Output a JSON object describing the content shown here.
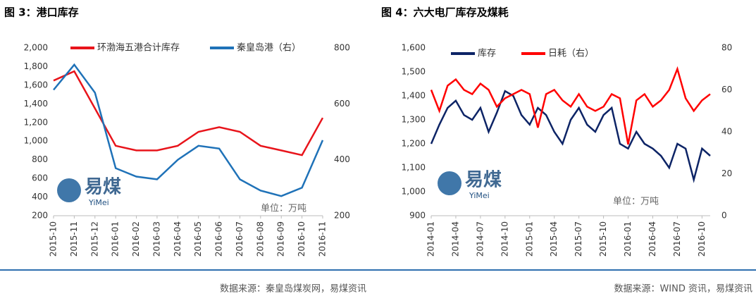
{
  "chart_data": [
    {
      "type": "line",
      "title": "图 3：港口库存",
      "source": "数据来源：秦皇岛煤炭网，易煤资讯",
      "annotation": "单位：万吨",
      "watermark": {
        "text": "易煤",
        "sub": "YiMei"
      },
      "x": [
        "2015-10",
        "2015-11",
        "2015-12",
        "2016-01",
        "2016-02",
        "2016-03",
        "2016-04",
        "2016-05",
        "2016-06",
        "2016-07",
        "2016-08",
        "2016-09",
        "2016-10",
        "2016-11"
      ],
      "ylim": [
        200,
        2000
      ],
      "yticks": [
        {
          "value": 200,
          "label": "200"
        },
        {
          "value": 400,
          "label": "400"
        },
        {
          "value": 600,
          "label": "600"
        },
        {
          "value": 800,
          "label": "800"
        },
        {
          "value": 1000,
          "label": "1,000"
        },
        {
          "value": 1200,
          "label": "1,200"
        },
        {
          "value": 1400,
          "label": "1,400"
        },
        {
          "value": 1600,
          "label": "1,600"
        },
        {
          "value": 1800,
          "label": "1,800"
        },
        {
          "value": 2000,
          "label": "2,000"
        }
      ],
      "y2lim": [
        200,
        800
      ],
      "y2ticks": [
        200,
        400,
        600,
        800
      ],
      "series": [
        {
          "name": "环渤海五港合计库存",
          "color": "#e8141b",
          "values": [
            1650,
            1750,
            1350,
            950,
            900,
            900,
            950,
            1100,
            1150,
            1100,
            950,
            900,
            850,
            1250
          ]
        },
        {
          "name": "秦皇岛港（右）",
          "color": "#1f72b8",
          "axis": "y2",
          "values": [
            650,
            740,
            640,
            370,
            340,
            330,
            400,
            450,
            440,
            330,
            290,
            270,
            300,
            470
          ]
        }
      ]
    },
    {
      "type": "line",
      "title": "图 4：六大电厂库存及煤耗",
      "source": "数据来源：WIND 资讯，易煤资讯",
      "annotation": "单位：万吨",
      "watermark": {
        "text": "易煤",
        "sub": "YiMei"
      },
      "x": [
        "2014-01",
        null,
        null,
        "2014-04",
        null,
        null,
        "2014-07",
        null,
        null,
        "2014-10",
        null,
        null,
        "2015-01",
        null,
        null,
        "2015-04",
        null,
        null,
        "2015-07",
        null,
        null,
        "2015-10",
        null,
        null,
        "2016-01",
        null,
        null,
        "2016-04",
        null,
        null,
        "2016-07",
        null,
        null,
        "2016-10",
        null
      ],
      "ylim": [
        900,
        1600
      ],
      "yticks": [
        {
          "value": 900,
          "label": "900"
        },
        {
          "value": 1000,
          "label": "1,000"
        },
        {
          "value": 1100,
          "label": "1,100"
        },
        {
          "value": 1200,
          "label": "1,200"
        },
        {
          "value": 1300,
          "label": "1,300"
        },
        {
          "value": 1400,
          "label": "1,400"
        },
        {
          "value": 1500,
          "label": "1,500"
        },
        {
          "value": 1600,
          "label": "1,600"
        }
      ],
      "y2lim": [
        0,
        80
      ],
      "y2ticks": [
        0,
        20,
        40,
        60,
        80
      ],
      "series": [
        {
          "name": "库存",
          "color": "#0d2466",
          "values": [
            1200,
            1280,
            1350,
            1380,
            1320,
            1300,
            1350,
            1250,
            1330,
            1420,
            1400,
            1320,
            1280,
            1350,
            1320,
            1250,
            1200,
            1300,
            1350,
            1280,
            1250,
            1320,
            1350,
            1200,
            1180,
            1250,
            1200,
            1180,
            1150,
            1100,
            1200,
            1180,
            1050,
            1180,
            1150
          ]
        },
        {
          "name": "日耗（右）",
          "color": "#ff0000",
          "axis": "y2",
          "values": [
            60,
            50,
            62,
            65,
            60,
            58,
            63,
            60,
            52,
            56,
            58,
            60,
            58,
            42,
            58,
            60,
            55,
            52,
            58,
            52,
            50,
            52,
            58,
            56,
            34,
            55,
            58,
            52,
            55,
            60,
            70,
            56,
            50,
            55,
            58
          ]
        }
      ]
    }
  ]
}
